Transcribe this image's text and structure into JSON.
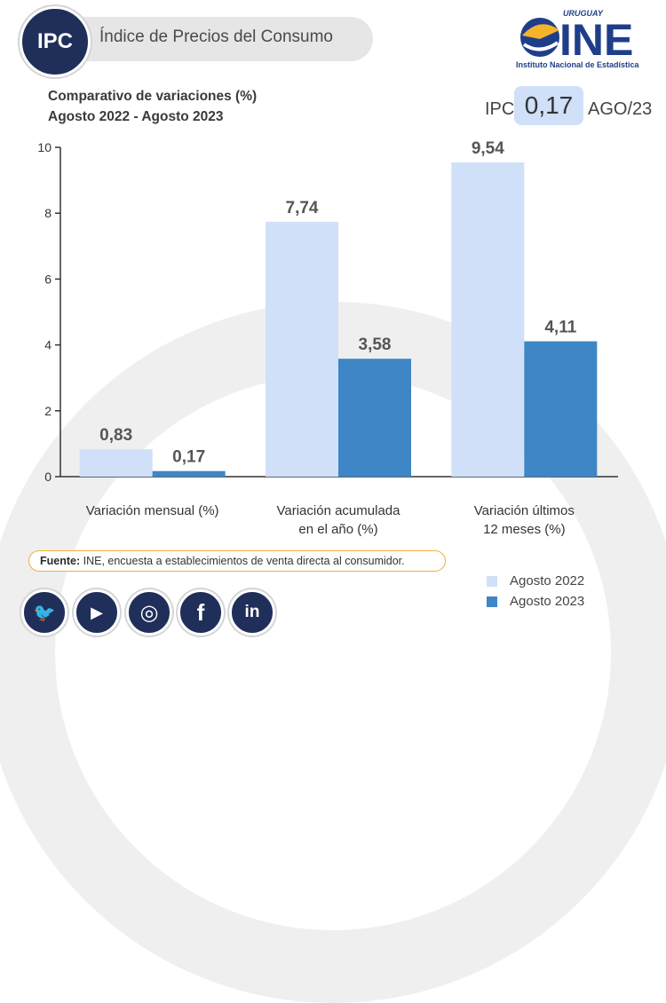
{
  "header": {
    "badge": "IPC",
    "title": "Índice de Precios del Consumo"
  },
  "logo": {
    "country": "URUGUAY",
    "acronym": "INE",
    "caption": "Instituto Nacional de Estadística"
  },
  "subtitle": {
    "line1": "Comparativo de variaciones (%)",
    "line2": "Agosto 2022 - Agosto 2023"
  },
  "ipc_badge": {
    "label": "IPC",
    "value": "0,17",
    "period": "AGO/23"
  },
  "chart_data": {
    "type": "bar",
    "categories": [
      [
        "Variación mensual (%)"
      ],
      [
        "Variación acumulada",
        "en el año (%)"
      ],
      [
        "Variación últimos",
        "12 meses (%)"
      ]
    ],
    "series": [
      {
        "name": "Agosto 2022",
        "color": "#cfe0f8",
        "values": [
          0.83,
          7.74,
          9.54
        ],
        "labels": [
          "0,83",
          "7,74",
          "9,54"
        ]
      },
      {
        "name": "Agosto 2023",
        "color": "#3e86c6",
        "values": [
          0.17,
          3.58,
          4.11
        ],
        "labels": [
          "0,17",
          "3,58",
          "4,11"
        ]
      }
    ],
    "ylim": [
      0,
      10
    ],
    "yticks": [
      0,
      2,
      4,
      6,
      8,
      10
    ],
    "grid": false,
    "legend": "bottom-right"
  },
  "source": {
    "label": "Fuente:",
    "text": " INE, encuesta a establecimientos de venta directa al consumidor."
  },
  "social": [
    {
      "icon": "twitter-icon",
      "glyph": "🐦"
    },
    {
      "icon": "youtube-icon",
      "glyph": "▶"
    },
    {
      "icon": "instagram-icon",
      "glyph": "◎"
    },
    {
      "icon": "facebook-icon",
      "glyph": "f"
    },
    {
      "icon": "linkedin-icon",
      "glyph": "in"
    }
  ]
}
